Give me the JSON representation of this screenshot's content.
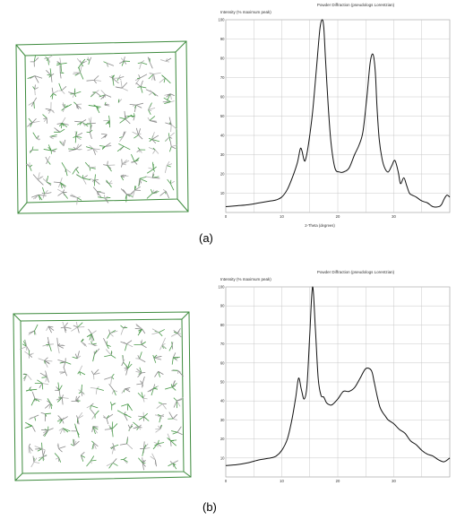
{
  "figures": [
    {
      "caption": "(a)",
      "chart_data": {
        "type": "line",
        "title": "Powder Diffraction (pseudologs Lorentzian)",
        "ylabel": "Intensity (% maximum peak)",
        "xlabel": "2-Theta (degrees)",
        "xlim": [
          0,
          40
        ],
        "ylim": [
          0,
          100
        ],
        "xticks": [
          "0",
          "10",
          "20",
          "30"
        ],
        "yticks": [
          "10",
          "20",
          "30",
          "40",
          "50",
          "60",
          "70",
          "80",
          "90",
          "100"
        ],
        "grid": true,
        "series": [
          {
            "x": [
              0,
              2,
              4,
              6,
              8,
              9,
              10,
              11,
              12,
              12.8,
              13.3,
              13.6,
              14.0,
              14.3,
              14.8,
              15.5,
              16.2,
              16.8,
              17.2,
              17.5,
              17.8,
              18.3,
              18.8,
              19.5,
              20.3,
              21,
              22,
              23,
              23.8,
              24.5,
              25.2,
              25.8,
              26.3,
              26.7,
              27.0,
              27.4,
              27.9,
              28.4,
              29.0,
              29.6,
              30.2,
              30.8,
              31.2,
              31.8,
              32.3,
              32.8,
              33.3,
              34,
              35,
              36,
              37,
              38,
              38.5,
              39,
              39.5,
              40
            ],
            "y": [
              3,
              3.5,
              4,
              5,
              6,
              6.5,
              8,
              12,
              19,
              26,
              33,
              32,
              27,
              28,
              36,
              52,
              75,
              95,
              100,
              96,
              80,
              55,
              36,
              23,
              21,
              21,
              23,
              30,
              35,
              42,
              60,
              78,
              82,
              73,
              55,
              38,
              28,
              23,
              21,
              24,
              27,
              21,
              15,
              18,
              14,
              10,
              9,
              8,
              6,
              5,
              3,
              3,
              4,
              7,
              9,
              8
            ]
          }
        ]
      }
    },
    {
      "caption": "(b)",
      "chart_data": {
        "type": "line",
        "title": "Powder Diffraction (pseudologs Lorentzian)",
        "ylabel": "Intensity (% maximum peak)",
        "xlim": [
          0,
          40
        ],
        "ylim": [
          0,
          100
        ],
        "xticks": [
          "0",
          "10",
          "20",
          "30"
        ],
        "yticks": [
          "10",
          "20",
          "30",
          "40",
          "50",
          "60",
          "70",
          "80",
          "90",
          "100"
        ],
        "grid": true,
        "series": [
          {
            "x": [
              0,
              2,
              4,
              6,
              8,
              9,
              10,
              11,
              11.8,
              12.5,
              13.0,
              13.5,
              14.0,
              14.5,
              15.0,
              15.5,
              16.0,
              16.5,
              17.0,
              17.5,
              18.0,
              18.5,
              19,
              20,
              21,
              22,
              23,
              24,
              25,
              26,
              26.5,
              27,
              27.5,
              28,
              28.5,
              29,
              30,
              31,
              32,
              33,
              34,
              35,
              36,
              37,
              38,
              39,
              40
            ],
            "y": [
              6,
              6.5,
              7.5,
              9,
              10,
              11,
              14,
              20,
              30,
              42,
              52,
              46,
              41,
              48,
              75,
              100,
              78,
              52,
              43,
              42,
              39,
              38,
              38,
              41,
              45,
              45,
              47,
              52,
              57,
              56,
              50,
              43,
              37,
              34,
              32,
              30,
              28,
              25,
              23,
              19,
              17,
              14,
              12,
              11,
              9,
              8,
              10
            ]
          }
        ]
      }
    }
  ]
}
